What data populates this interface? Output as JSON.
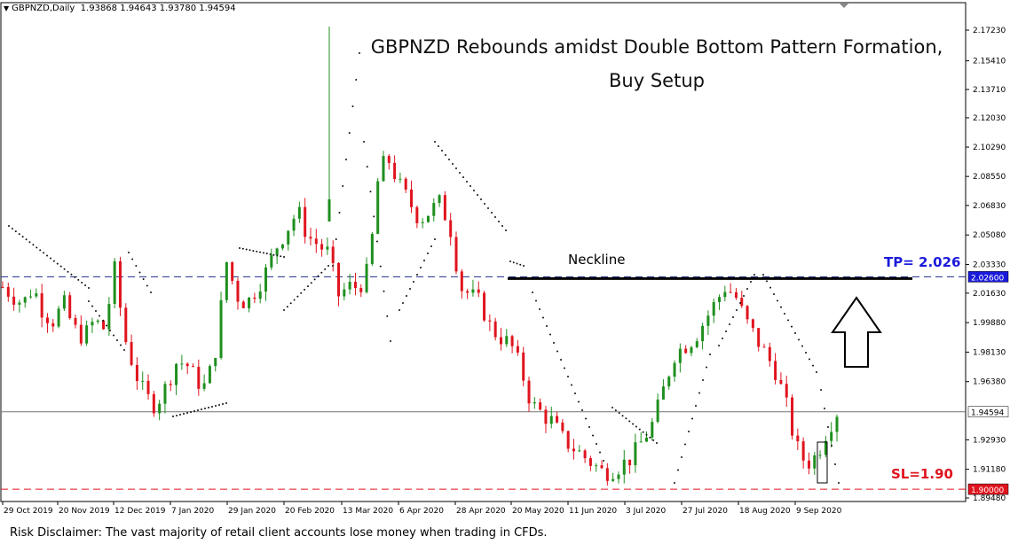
{
  "header": {
    "symbol": "GBPNZD,Daily",
    "ohlc": "1.93868 1.94643 1.93780 1.94594"
  },
  "title_line1": "GBPNZD Rebounds amidst Double Bottom Pattern Formation,",
  "title_line2": "Buy Setup",
  "annotations": {
    "neckline": "Neckline",
    "tp": "TP= 2.026",
    "sl": "SL=1.90"
  },
  "disclaimer": "Risk Disclaimer: The vast majority of retail client accounts lose money when trading in CFDs.",
  "colors": {
    "bull": "#1e8f1e",
    "bear": "#e0141e",
    "tp_label": "#1a1adb",
    "tp_line": "#1e2a8a",
    "sl_line": "#e0141e",
    "price_label_bg": "#ffffff"
  },
  "chart_data": {
    "type": "candlestick",
    "y_ticks": [
      "2.17230",
      "2.15410",
      "2.13710",
      "2.12030",
      "2.10290",
      "2.08550",
      "2.06830",
      "2.05080",
      "2.03330",
      "2.01630",
      "1.99880",
      "1.98130",
      "1.96380",
      "1.92930",
      "1.91180",
      "1.89480"
    ],
    "y_range": [
      1.8948,
      2.1723
    ],
    "x_ticks": [
      "29 Oct 2019",
      "20 Nov 2019",
      "12 Dec 2019",
      "7 Jan 2020",
      "29 Jan 2020",
      "20 Feb 2020",
      "13 Mar 2020",
      "6 Apr 2020",
      "28 Apr 2020",
      "20 May 2020",
      "11 Jun 2020",
      "3 Jul 2020",
      "27 Jul 2020",
      "18 Aug 2020",
      "9 Sep 2020"
    ],
    "price_tags": {
      "tp": "2.02600",
      "current": "1.94594",
      "sl": "1.90000"
    },
    "levels": {
      "tp": 2.026,
      "current": 1.94594,
      "sl": 1.9
    },
    "close_path": [
      2.02,
      2.015,
      2.01,
      2.02,
      2.005,
      2.0,
      2.01,
      1.995,
      1.99,
      2.0,
      1.995,
      2.03,
      1.99,
      1.97,
      1.955,
      1.95,
      1.96,
      1.975,
      1.975,
      1.965,
      1.96,
      1.985,
      2.035,
      2.015,
      2.01,
      2.02,
      2.03,
      2.045,
      2.055,
      2.065,
      2.05,
      2.045,
      2.04,
      2.015,
      2.02,
      2.02,
      2.03,
      2.09,
      2.095,
      2.08,
      2.07,
      2.06,
      2.065,
      2.07,
      2.055,
      2.02,
      2.015,
      2.01,
      1.995,
      1.99,
      1.985,
      1.97,
      1.95,
      1.945,
      1.94,
      1.93,
      1.925,
      1.92,
      1.915,
      1.91,
      1.912,
      1.915,
      1.92,
      1.93,
      1.94,
      1.96,
      1.98,
      1.985,
      1.99,
      2.0,
      2.01,
      2.02,
      2.015,
      2.0,
      1.99,
      1.98,
      1.97,
      1.95,
      1.925,
      1.915,
      1.92,
      1.935,
      1.94594
    ]
  }
}
